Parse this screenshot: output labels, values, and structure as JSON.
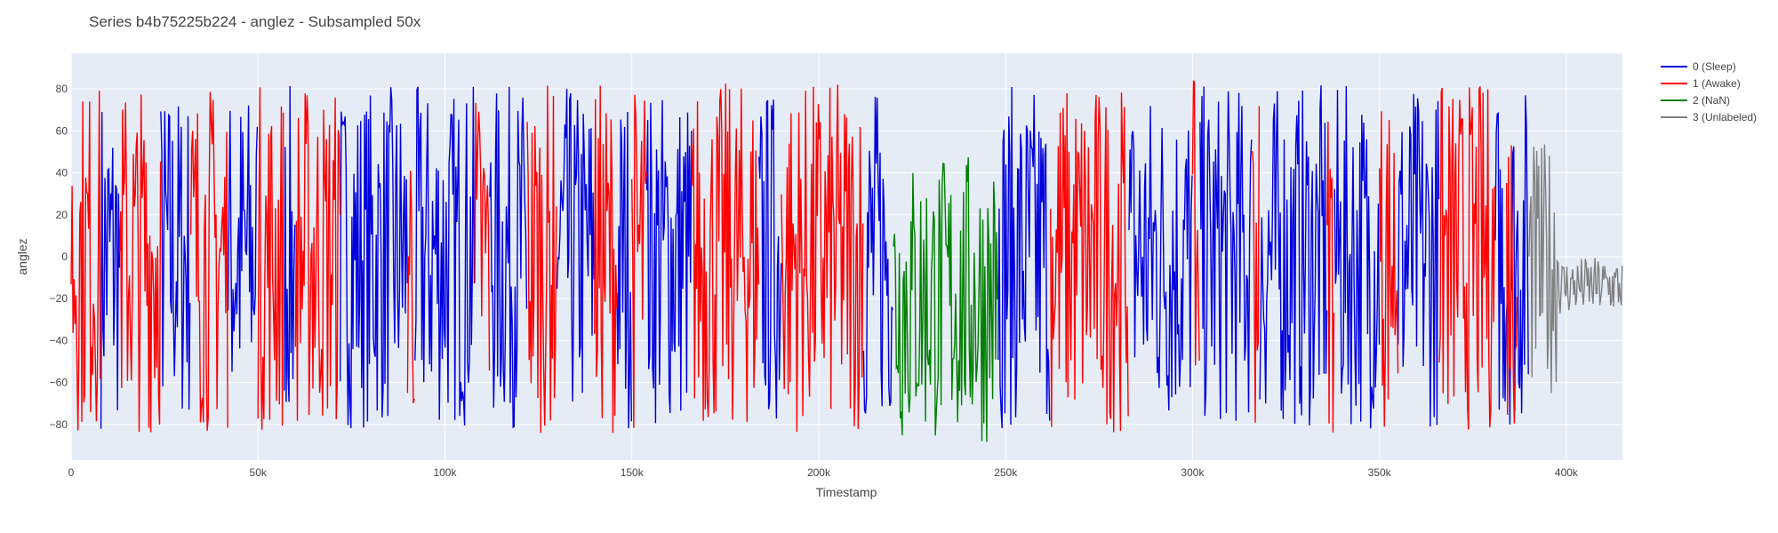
{
  "chart_data": {
    "type": "line",
    "title": "Series b4b75225b224 - anglez - Subsampled 50x",
    "xlabel": "Timestamp",
    "ylabel": "anglez",
    "xlim": [
      0,
      415000
    ],
    "ylim": [
      -97,
      97
    ],
    "x_ticks": [
      0,
      50000,
      100000,
      150000,
      200000,
      250000,
      300000,
      350000,
      400000
    ],
    "x_tick_labels": [
      "0",
      "50k",
      "100k",
      "150k",
      "200k",
      "250k",
      "300k",
      "350k",
      "400k"
    ],
    "y_ticks": [
      -80,
      -60,
      -40,
      -20,
      0,
      20,
      40,
      60,
      80
    ],
    "y_tick_labels": [
      "−80",
      "−60",
      "−40",
      "−20",
      "0",
      "20",
      "40",
      "60",
      "80"
    ],
    "grid": true,
    "legend_position": "top-right",
    "series": [
      {
        "name": "0 (Sleep)",
        "color": "#0000dd",
        "amplitude": 82,
        "segments": [
          [
            8000,
            13000
          ],
          [
            24000,
            32000
          ],
          [
            42000,
            50000
          ],
          [
            57000,
            60000
          ],
          [
            72000,
            90000
          ],
          [
            92000,
            108000
          ],
          [
            112000,
            122000
          ],
          [
            130000,
            140000
          ],
          [
            146000,
            150000
          ],
          [
            154000,
            166000
          ],
          [
            184000,
            190000
          ],
          [
            212000,
            220000
          ],
          [
            248000,
            262000
          ],
          [
            283000,
            300000
          ],
          [
            302000,
            316000
          ],
          [
            318000,
            336000
          ],
          [
            338000,
            350000
          ],
          [
            355000,
            366000
          ],
          [
            381000,
            390000
          ]
        ]
      },
      {
        "name": "1 (Awake)",
        "color": "#ff0000",
        "amplitude": 84,
        "segments": [
          [
            0,
            8000
          ],
          [
            13000,
            24000
          ],
          [
            32000,
            42000
          ],
          [
            50000,
            57000
          ],
          [
            60000,
            72000
          ],
          [
            90000,
            92000
          ],
          [
            108000,
            112000
          ],
          [
            122000,
            130000
          ],
          [
            140000,
            146000
          ],
          [
            150000,
            154000
          ],
          [
            166000,
            184000
          ],
          [
            190000,
            212000
          ],
          [
            262000,
            283000
          ],
          [
            300000,
            302000
          ],
          [
            316000,
            318000
          ],
          [
            336000,
            338000
          ],
          [
            350000,
            355000
          ],
          [
            366000,
            381000
          ],
          [
            384000,
            387000
          ]
        ]
      },
      {
        "name": "2 (NaN)",
        "color": "#008000",
        "amplitude": 70,
        "segments": [
          [
            220000,
            248000
          ]
        ]
      },
      {
        "name": "3 (Unlabeled)",
        "color": "#808080",
        "amplitude": 60,
        "segments": [
          [
            390000,
            415000
          ]
        ]
      }
    ]
  }
}
